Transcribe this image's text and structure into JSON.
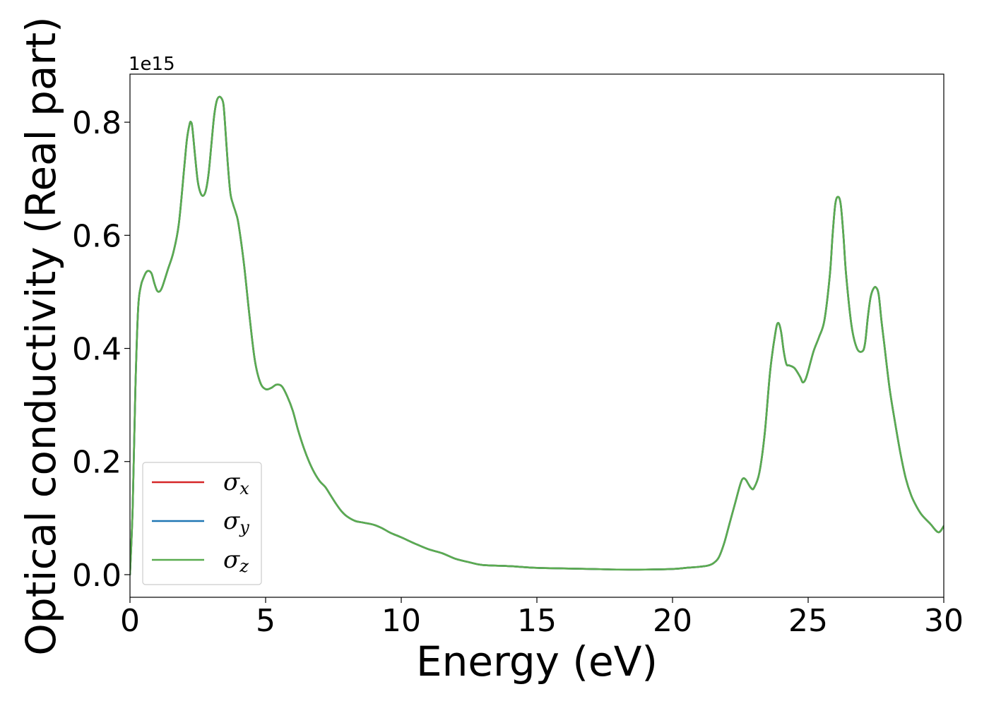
{
  "chart_data": {
    "type": "line",
    "xlabel": "Energy (eV)",
    "ylabel": "Optical conductivity (Real part)",
    "y_offset_text": "1e15",
    "xlim": [
      0,
      30
    ],
    "ylim": [
      -0.04,
      0.885
    ],
    "x_ticks": [
      0,
      5,
      10,
      15,
      20,
      25,
      30
    ],
    "x_tick_labels": [
      "0",
      "5",
      "10",
      "15",
      "20",
      "25",
      "30"
    ],
    "y_ticks": [
      0.0,
      0.2,
      0.4,
      0.6,
      0.8
    ],
    "y_tick_labels": [
      "0.0",
      "0.2",
      "0.4",
      "0.6",
      "0.8"
    ],
    "grid": false,
    "legend_position": "lower-left",
    "x": [
      0,
      0.1,
      0.2,
      0.3,
      0.4,
      0.5,
      0.6,
      0.7,
      0.8,
      0.9,
      1.0,
      1.1,
      1.2,
      1.4,
      1.6,
      1.8,
      2.0,
      2.1,
      2.2,
      2.25,
      2.3,
      2.4,
      2.5,
      2.6,
      2.7,
      2.8,
      2.9,
      3.0,
      3.1,
      3.2,
      3.3,
      3.4,
      3.45,
      3.5,
      3.6,
      3.7,
      3.8,
      3.9,
      4.0,
      4.2,
      4.4,
      4.6,
      4.8,
      5.0,
      5.2,
      5.4,
      5.6,
      5.8,
      6.0,
      6.2,
      6.4,
      6.6,
      6.8,
      7.0,
      7.2,
      7.4,
      7.6,
      7.8,
      8.0,
      8.3,
      8.6,
      9.0,
      9.3,
      9.6,
      10.0,
      10.5,
      11.0,
      11.5,
      12.0,
      12.5,
      13.0,
      14.0,
      15.0,
      16.0,
      17.0,
      18.0,
      19.0,
      20.0,
      20.5,
      21.0,
      21.3,
      21.5,
      21.7,
      21.9,
      22.1,
      22.3,
      22.5,
      22.6,
      22.7,
      22.8,
      22.9,
      23.0,
      23.2,
      23.4,
      23.6,
      23.8,
      23.9,
      24.0,
      24.1,
      24.2,
      24.3,
      24.5,
      24.7,
      24.8,
      24.9,
      25.0,
      25.2,
      25.4,
      25.6,
      25.8,
      25.9,
      26.0,
      26.1,
      26.2,
      26.3,
      26.4,
      26.6,
      26.8,
      27.0,
      27.1,
      27.2,
      27.3,
      27.4,
      27.5,
      27.6,
      27.7,
      27.8,
      28.0,
      28.2,
      28.4,
      28.6,
      28.8,
      29.0,
      29.2,
      29.5,
      29.8,
      30.0
    ],
    "series": [
      {
        "name": "σx",
        "symbol": "σ",
        "subscript": "x",
        "color": "#d62728",
        "values": [
          0.0,
          0.12,
          0.33,
          0.47,
          0.51,
          0.525,
          0.535,
          0.537,
          0.532,
          0.515,
          0.502,
          0.501,
          0.51,
          0.54,
          0.57,
          0.62,
          0.72,
          0.77,
          0.797,
          0.8,
          0.79,
          0.74,
          0.695,
          0.675,
          0.67,
          0.68,
          0.71,
          0.76,
          0.81,
          0.838,
          0.845,
          0.84,
          0.83,
          0.8,
          0.73,
          0.675,
          0.655,
          0.64,
          0.62,
          0.55,
          0.46,
          0.38,
          0.34,
          0.328,
          0.33,
          0.336,
          0.333,
          0.315,
          0.29,
          0.255,
          0.225,
          0.2,
          0.18,
          0.165,
          0.155,
          0.14,
          0.125,
          0.112,
          0.103,
          0.095,
          0.092,
          0.088,
          0.082,
          0.074,
          0.066,
          0.055,
          0.045,
          0.038,
          0.028,
          0.022,
          0.017,
          0.015,
          0.012,
          0.011,
          0.01,
          0.009,
          0.009,
          0.01,
          0.012,
          0.014,
          0.016,
          0.02,
          0.03,
          0.055,
          0.09,
          0.125,
          0.16,
          0.17,
          0.168,
          0.16,
          0.153,
          0.153,
          0.18,
          0.25,
          0.36,
          0.43,
          0.445,
          0.43,
          0.395,
          0.372,
          0.37,
          0.365,
          0.35,
          0.34,
          0.345,
          0.36,
          0.395,
          0.42,
          0.45,
          0.53,
          0.6,
          0.655,
          0.668,
          0.655,
          0.6,
          0.53,
          0.44,
          0.4,
          0.395,
          0.41,
          0.455,
          0.49,
          0.505,
          0.508,
          0.495,
          0.45,
          0.41,
          0.33,
          0.27,
          0.215,
          0.17,
          0.14,
          0.12,
          0.105,
          0.09,
          0.075,
          0.086
        ]
      },
      {
        "name": "σy",
        "symbol": "σ",
        "subscript": "y",
        "color": "#1f77b4",
        "values": [
          0.0,
          0.12,
          0.33,
          0.47,
          0.51,
          0.525,
          0.535,
          0.537,
          0.532,
          0.515,
          0.502,
          0.501,
          0.51,
          0.54,
          0.57,
          0.62,
          0.72,
          0.77,
          0.797,
          0.8,
          0.79,
          0.74,
          0.695,
          0.675,
          0.67,
          0.68,
          0.71,
          0.76,
          0.81,
          0.838,
          0.845,
          0.84,
          0.83,
          0.8,
          0.73,
          0.675,
          0.655,
          0.64,
          0.62,
          0.55,
          0.46,
          0.38,
          0.34,
          0.328,
          0.33,
          0.336,
          0.333,
          0.315,
          0.29,
          0.255,
          0.225,
          0.2,
          0.18,
          0.165,
          0.155,
          0.14,
          0.125,
          0.112,
          0.103,
          0.095,
          0.092,
          0.088,
          0.082,
          0.074,
          0.066,
          0.055,
          0.045,
          0.038,
          0.028,
          0.022,
          0.017,
          0.015,
          0.012,
          0.011,
          0.01,
          0.009,
          0.009,
          0.01,
          0.012,
          0.014,
          0.016,
          0.02,
          0.03,
          0.055,
          0.09,
          0.125,
          0.16,
          0.17,
          0.168,
          0.16,
          0.153,
          0.153,
          0.18,
          0.25,
          0.36,
          0.43,
          0.445,
          0.43,
          0.395,
          0.372,
          0.37,
          0.365,
          0.35,
          0.34,
          0.345,
          0.36,
          0.395,
          0.42,
          0.45,
          0.53,
          0.6,
          0.655,
          0.668,
          0.655,
          0.6,
          0.53,
          0.44,
          0.4,
          0.395,
          0.41,
          0.455,
          0.49,
          0.505,
          0.508,
          0.495,
          0.45,
          0.41,
          0.33,
          0.27,
          0.215,
          0.17,
          0.14,
          0.12,
          0.105,
          0.09,
          0.075,
          0.086
        ]
      },
      {
        "name": "σz",
        "symbol": "σ",
        "subscript": "z",
        "color": "#5aac50",
        "values": [
          0.0,
          0.12,
          0.33,
          0.47,
          0.51,
          0.525,
          0.535,
          0.537,
          0.532,
          0.515,
          0.502,
          0.501,
          0.51,
          0.54,
          0.57,
          0.62,
          0.72,
          0.77,
          0.797,
          0.8,
          0.79,
          0.74,
          0.695,
          0.675,
          0.67,
          0.68,
          0.71,
          0.76,
          0.81,
          0.838,
          0.845,
          0.84,
          0.83,
          0.8,
          0.73,
          0.675,
          0.655,
          0.64,
          0.62,
          0.55,
          0.46,
          0.38,
          0.34,
          0.328,
          0.33,
          0.336,
          0.333,
          0.315,
          0.29,
          0.255,
          0.225,
          0.2,
          0.18,
          0.165,
          0.155,
          0.14,
          0.125,
          0.112,
          0.103,
          0.095,
          0.092,
          0.088,
          0.082,
          0.074,
          0.066,
          0.055,
          0.045,
          0.038,
          0.028,
          0.022,
          0.017,
          0.015,
          0.012,
          0.011,
          0.01,
          0.009,
          0.009,
          0.01,
          0.012,
          0.014,
          0.016,
          0.02,
          0.03,
          0.055,
          0.09,
          0.125,
          0.16,
          0.17,
          0.168,
          0.16,
          0.153,
          0.153,
          0.18,
          0.25,
          0.36,
          0.43,
          0.445,
          0.43,
          0.395,
          0.372,
          0.37,
          0.365,
          0.35,
          0.34,
          0.345,
          0.36,
          0.395,
          0.42,
          0.45,
          0.53,
          0.6,
          0.655,
          0.668,
          0.655,
          0.6,
          0.53,
          0.44,
          0.4,
          0.395,
          0.41,
          0.455,
          0.49,
          0.505,
          0.508,
          0.495,
          0.45,
          0.41,
          0.33,
          0.27,
          0.215,
          0.17,
          0.14,
          0.12,
          0.105,
          0.09,
          0.075,
          0.086
        ]
      }
    ]
  }
}
